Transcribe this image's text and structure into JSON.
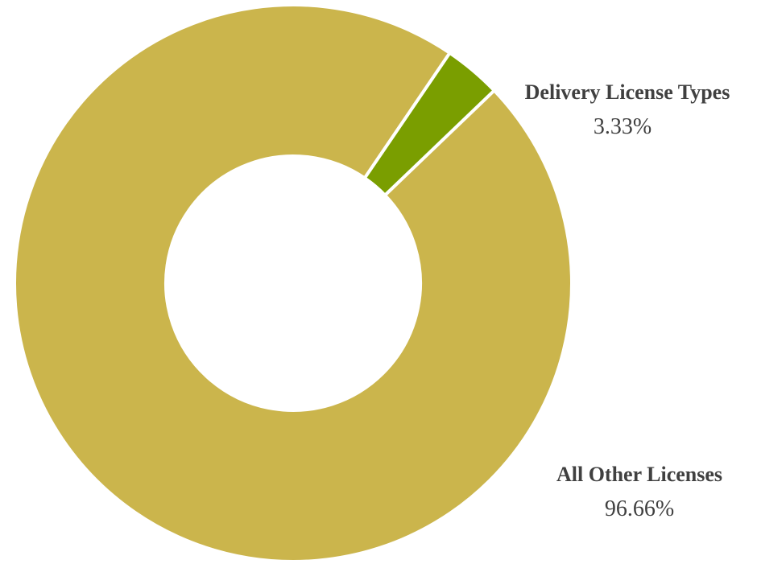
{
  "chart_data": {
    "type": "pie",
    "variant": "donut",
    "title": "",
    "slices": [
      {
        "label": "All Other Licenses",
        "value": 96.66,
        "value_label": "96.66%",
        "color": "#CBB54C"
      },
      {
        "label": "Delivery License Types",
        "value": 3.33,
        "value_label": "3.33%",
        "color": "#7A9E00"
      }
    ],
    "legend": "none",
    "data_labels": "outside"
  }
}
